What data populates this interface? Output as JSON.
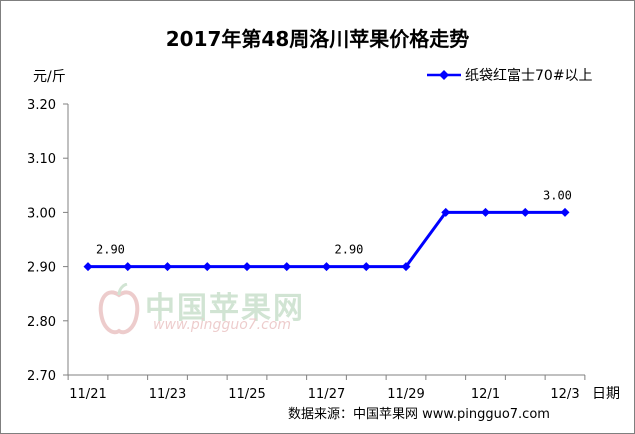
{
  "chart_data": {
    "type": "line",
    "title": "2017年第48周洛川苹果价格走势",
    "ylabel": "元/斤",
    "xlabel": "日期",
    "source": "数据来源：中国苹果网 www.pingguo7.com",
    "watermark": {
      "text": "中国苹果网",
      "url": "www.pingguo7.com"
    },
    "ylim": [
      2.7,
      3.2
    ],
    "yticks": [
      "3.20",
      "3.10",
      "3.00",
      "2.90",
      "2.80",
      "2.70"
    ],
    "ytick_values": [
      3.2,
      3.1,
      3.0,
      2.9,
      2.8,
      2.7
    ],
    "xticks": [
      "11/21",
      "11/23",
      "11/25",
      "11/27",
      "11/29",
      "12/1",
      "12/3"
    ],
    "legend_position": "top-right",
    "series": [
      {
        "name": "纸袋红富士70#以上",
        "color": "#0000ff",
        "values": [
          2.9,
          2.9,
          2.9,
          2.9,
          2.9,
          2.9,
          2.9,
          2.9,
          2.9,
          3.0,
          3.0,
          3.0,
          3.0
        ]
      }
    ],
    "data_labels": [
      {
        "index": 0,
        "text": "2.90"
      },
      {
        "index": 6,
        "text": "2.90"
      },
      {
        "index": 12,
        "text": "3.00"
      }
    ],
    "grid": false
  }
}
